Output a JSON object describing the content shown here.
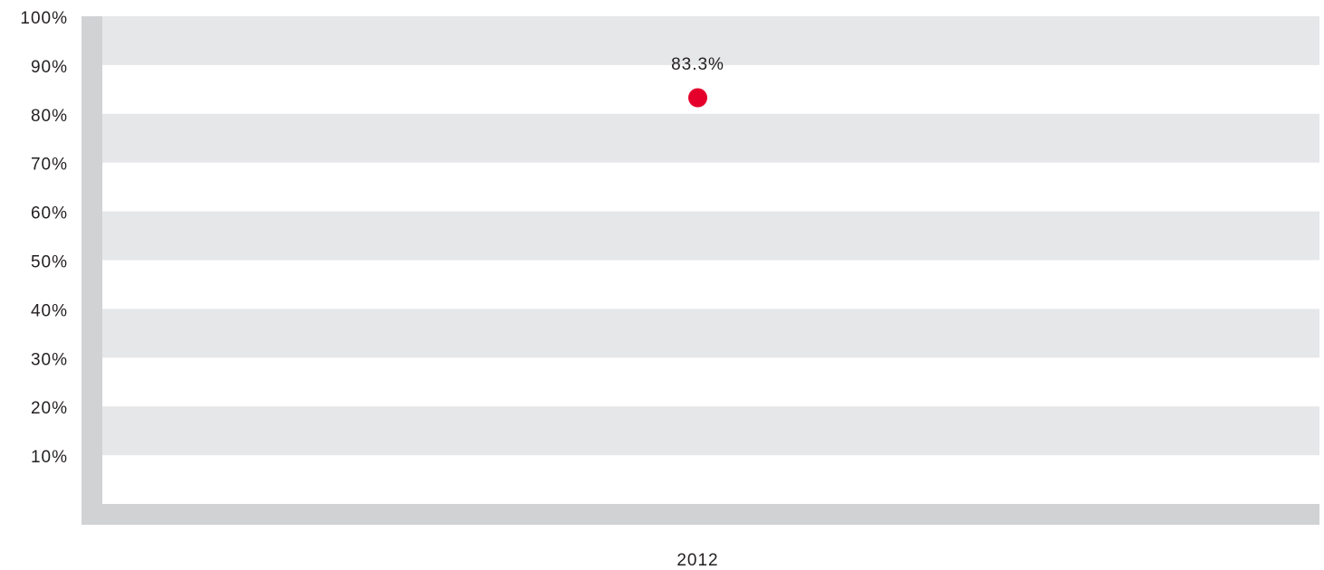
{
  "chart_data": {
    "type": "scatter",
    "categories": [
      "2012"
    ],
    "values": [
      83.3
    ],
    "value_labels": [
      "83.3%"
    ],
    "color": "#e4002b",
    "ylim": [
      0,
      100
    ],
    "yticks": [
      {
        "value": 10,
        "label": "10%"
      },
      {
        "value": 20,
        "label": "20%"
      },
      {
        "value": 30,
        "label": "30%"
      },
      {
        "value": 40,
        "label": "40%"
      },
      {
        "value": 50,
        "label": "50%"
      },
      {
        "value": 60,
        "label": "60%"
      },
      {
        "value": 70,
        "label": "70%"
      },
      {
        "value": 80,
        "label": "80%"
      },
      {
        "value": 90,
        "label": "90%"
      },
      {
        "value": 100,
        "label": "100%"
      }
    ],
    "grid": true
  }
}
